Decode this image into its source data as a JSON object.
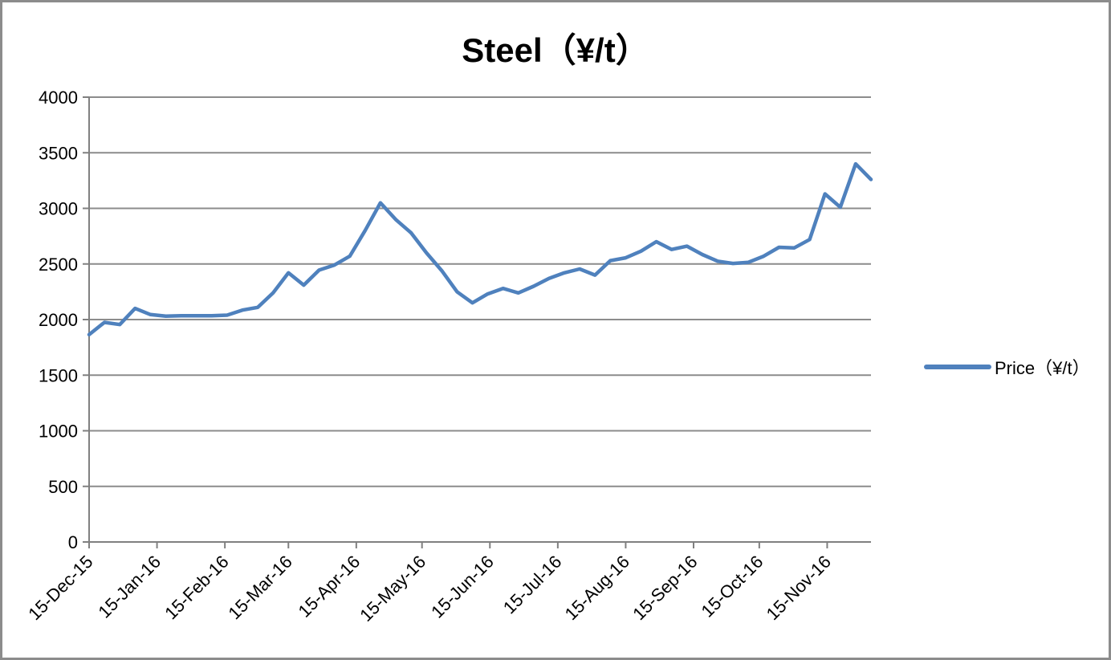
{
  "chart_data": {
    "type": "line",
    "title": "Steel（¥/t）",
    "xlabel": "",
    "ylabel": "",
    "ylim": [
      0,
      4000
    ],
    "y_ticks": [
      0,
      500,
      1000,
      1500,
      2000,
      2500,
      3000,
      3500,
      4000
    ],
    "x_tick_labels": [
      "15-Dec-15",
      "15-Jan-16",
      "15-Feb-16",
      "15-Mar-16",
      "15-Apr-16",
      "15-May-16",
      "15-Jun-16",
      "15-Jul-16",
      "15-Aug-16",
      "15-Sep-16",
      "15-Oct-16",
      "15-Nov-16"
    ],
    "grid": "horizontal",
    "legend": {
      "label": "Price（¥/t）",
      "position": "right-middle"
    },
    "colors": {
      "series": "#4F81BD",
      "gridline": "#8C8C8C",
      "axis": "#808080",
      "text": "#000000",
      "frame_border": "#8C8C8C",
      "background": "#FFFFFF"
    },
    "series": [
      {
        "name": "Price（¥/t）",
        "color": "#4F81BD",
        "x": [
          "15-Dec-15",
          "22-Dec-15",
          "29-Dec-15",
          "5-Jan-16",
          "12-Jan-16",
          "19-Jan-16",
          "26-Jan-16",
          "2-Feb-16",
          "9-Feb-16",
          "16-Feb-16",
          "23-Feb-16",
          "1-Mar-16",
          "8-Mar-16",
          "15-Mar-16",
          "22-Mar-16",
          "29-Mar-16",
          "5-Apr-16",
          "12-Apr-16",
          "19-Apr-16",
          "26-Apr-16",
          "3-May-16",
          "10-May-16",
          "17-May-16",
          "24-May-16",
          "31-May-16",
          "7-Jun-16",
          "14-Jun-16",
          "21-Jun-16",
          "28-Jun-16",
          "5-Jul-16",
          "12-Jul-16",
          "19-Jul-16",
          "26-Jul-16",
          "2-Aug-16",
          "9-Aug-16",
          "16-Aug-16",
          "23-Aug-16",
          "30-Aug-16",
          "6-Sep-16",
          "13-Sep-16",
          "20-Sep-16",
          "27-Sep-16",
          "4-Oct-16",
          "11-Oct-16",
          "18-Oct-16",
          "25-Oct-16",
          "1-Nov-16",
          "8-Nov-16",
          "15-Nov-16",
          "22-Nov-16",
          "29-Nov-16",
          "6-Dec-16"
        ],
        "values": [
          1865,
          1975,
          1955,
          2100,
          2045,
          2030,
          2035,
          2035,
          2035,
          2040,
          2085,
          2110,
          2240,
          2420,
          2310,
          2445,
          2490,
          2570,
          2800,
          3050,
          2900,
          2780,
          2600,
          2440,
          2250,
          2150,
          2230,
          2280,
          2240,
          2300,
          2370,
          2420,
          2455,
          2400,
          2530,
          2555,
          2615,
          2700,
          2630,
          2660,
          2585,
          2525,
          2505,
          2515,
          2570,
          2650,
          2645,
          2720,
          3130,
          3010,
          3400,
          3260
        ]
      }
    ]
  }
}
